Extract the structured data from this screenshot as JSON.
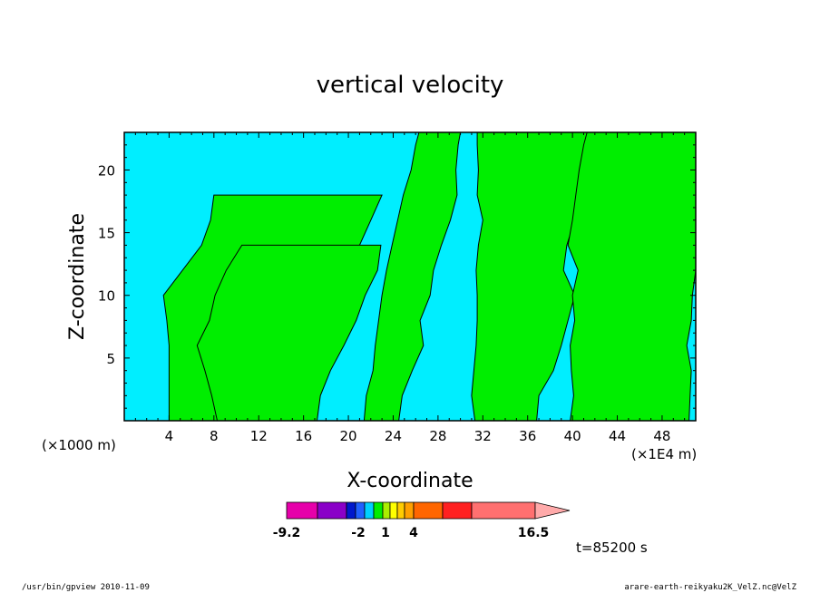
{
  "chart_data": {
    "type": "heatmap",
    "title": "vertical velocity",
    "xlabel": "X-coordinate",
    "ylabel": "Z-coordinate",
    "x_unit_left": "(×1000 m)",
    "x_unit_right": "(×1E4 m)",
    "xlim": [
      0,
      51
    ],
    "ylim": [
      0,
      23
    ],
    "x_ticks": [
      4,
      8,
      12,
      16,
      20,
      24,
      28,
      32,
      36,
      40,
      44,
      48
    ],
    "y_ticks": [
      5,
      10,
      15,
      20
    ],
    "fill_colors": {
      "negative": "#00eeff",
      "positive": "#00ee00"
    },
    "positive_regions": [
      {
        "x": [
          [
            0,
            0
          ],
          [
            4.0,
            14.3
          ],
          [
            4.0,
            14.5
          ],
          [
            4.0,
            14.5
          ],
          [
            4.0,
            15.5
          ],
          [
            3.8,
            17.5
          ],
          [
            3.5,
            18.5
          ],
          [
            5.2,
            20.5
          ],
          [
            6.9,
            21.0
          ],
          [
            7.7,
            22.0
          ],
          [
            8.0,
            23.0
          ]
        ]
      },
      {
        "x": [
          [
            0,
            0
          ],
          [
            8.3,
            17.2
          ],
          [
            7.8,
            17.5
          ],
          [
            7.2,
            18.4
          ],
          [
            6.5,
            19.6
          ],
          [
            7.6,
            20.7
          ],
          [
            8.1,
            21.5
          ],
          [
            9.1,
            22.6
          ],
          [
            10.5,
            22.9
          ]
        ]
      },
      {
        "x": [
          [
            0,
            0
          ],
          [
            21.4,
            24.5
          ],
          [
            21.6,
            24.8
          ],
          [
            22.2,
            25.7
          ],
          [
            22.4,
            26.7
          ],
          [
            22.7,
            26.4
          ],
          [
            23.0,
            27.3
          ],
          [
            23.4,
            27.6
          ],
          [
            23.9,
            28.3
          ],
          [
            24.4,
            29.1
          ],
          [
            24.9,
            29.7
          ],
          [
            25.6,
            29.6
          ],
          [
            26.0,
            29.8
          ],
          [
            26.3,
            30.0
          ]
        ]
      },
      {
        "x": [
          [
            0,
            0
          ],
          [
            31.3,
            36.8
          ],
          [
            31.0,
            37.0
          ],
          [
            31.2,
            38.3
          ],
          [
            31.4,
            39.0
          ],
          [
            31.5,
            39.6
          ],
          [
            31.5,
            40.2
          ],
          [
            31.4,
            39.2
          ],
          [
            31.6,
            39.5
          ],
          [
            32.0,
            40.2
          ],
          [
            31.5,
            41.2
          ],
          [
            31.6,
            42.1
          ],
          [
            31.5,
            42.4
          ],
          [
            31.5,
            43.0
          ]
        ]
      },
      {
        "x": [
          [
            0,
            0
          ],
          [
            39.8,
            50.4
          ],
          [
            40.1,
            50.5
          ],
          [
            39.9,
            50.6
          ],
          [
            39.8,
            50.2
          ],
          [
            40.2,
            50.6
          ],
          [
            40.0,
            50.7
          ],
          [
            40.5,
            51.0
          ],
          [
            39.6,
            51.0
          ],
          [
            40.0,
            51.0
          ],
          [
            40.3,
            51.0
          ],
          [
            40.6,
            51.0
          ],
          [
            41.0,
            51.0
          ],
          [
            41.3,
            51.0
          ]
        ]
      }
    ],
    "colorbar": {
      "min_label": "-9.2",
      "tick_labels": [
        "-2",
        "1",
        "4"
      ],
      "max_label": "16.5",
      "colors": [
        "#e600aa",
        "#8a00c8",
        "#0018cc",
        "#2060ff",
        "#00d0ff",
        "#00ee00",
        "#aaee00",
        "#ffff00",
        "#ffcc00",
        "#ffa000",
        "#ff6600",
        "#ff2020",
        "#ff7070",
        "#ffaaaa"
      ]
    },
    "time_label": "t=85200 s"
  },
  "footer": {
    "left": "/usr/bin/gpview   2010-11-09",
    "right": "arare-earth-reikyaku2K_VelZ.nc@VelZ"
  }
}
